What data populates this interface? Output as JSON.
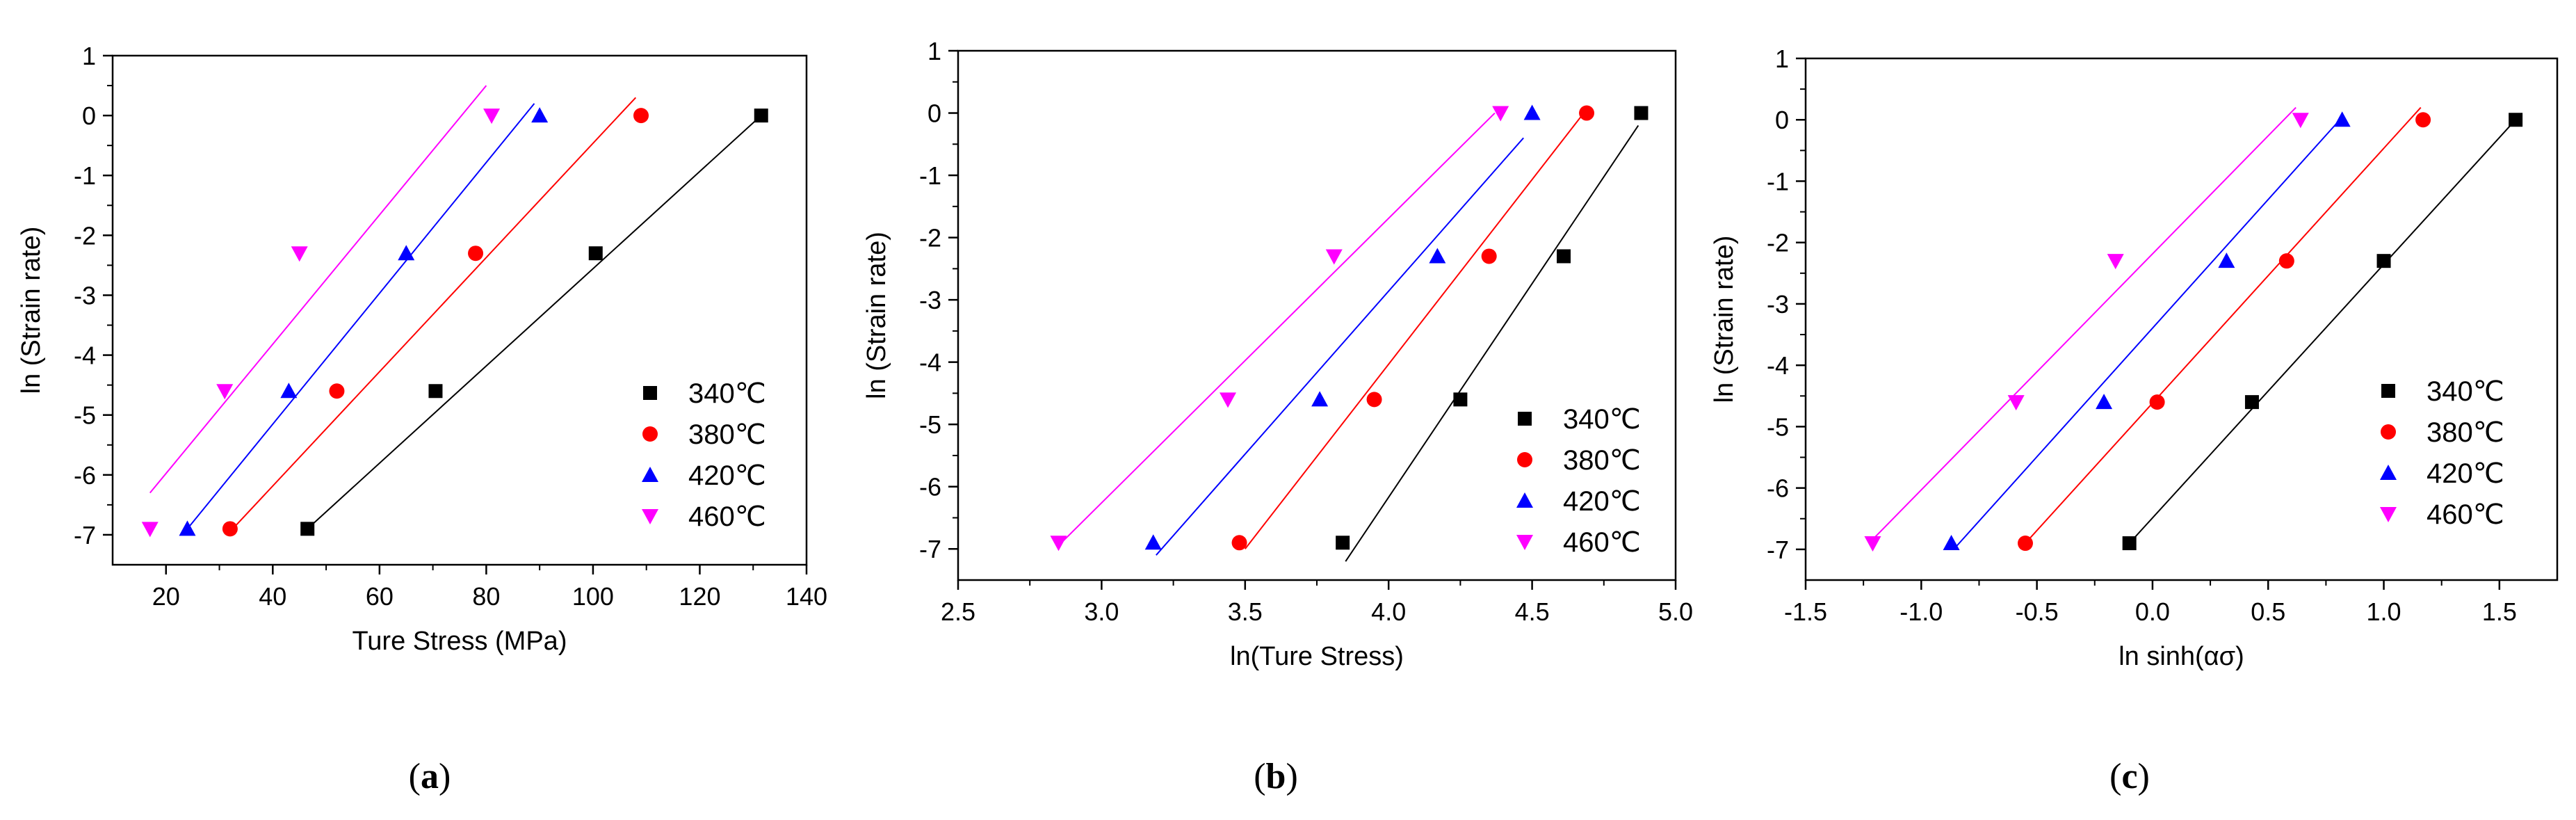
{
  "chart_data": [
    {
      "type": "scatter",
      "panel_label": "(a)",
      "panel_letter": "a",
      "xlabel": "Ture Stress (MPa)",
      "ylabel": "ln (Strain rate)",
      "xlim": [
        10,
        140
      ],
      "ylim": [
        -7.5,
        1
      ],
      "xticks": [
        20,
        40,
        60,
        80,
        100,
        120,
        140
      ],
      "yticks": [
        1,
        0,
        -1,
        -2,
        -3,
        -4,
        -5,
        -6,
        -7
      ],
      "legend_position": "bottom-right",
      "series": [
        {
          "name": "340℃",
          "color": "#000000",
          "marker": "square",
          "x": [
            46.5,
            70.5,
            100.5,
            131.5
          ],
          "y": [
            -6.9,
            -4.6,
            -2.3,
            0.0
          ],
          "fit": [
            [
              46.5,
              -6.9
            ],
            [
              131.5,
              0.0
            ]
          ]
        },
        {
          "name": "380℃",
          "color": "#ff0000",
          "marker": "circle",
          "x": [
            32,
            52,
            78,
            109
          ],
          "y": [
            -6.9,
            -4.6,
            -2.3,
            0.0
          ],
          "fit": [
            [
              32.5,
              -6.9
            ],
            [
              108,
              0.3
            ]
          ]
        },
        {
          "name": "420℃",
          "color": "#0000ff",
          "marker": "triangle-up",
          "x": [
            24,
            43,
            65,
            90
          ],
          "y": [
            -6.9,
            -4.6,
            -2.3,
            0.0
          ],
          "fit": [
            [
              24,
              -6.9
            ],
            [
              89,
              0.2
            ]
          ]
        },
        {
          "name": "460℃",
          "color": "#ff00ff",
          "marker": "triangle-down",
          "x": [
            17,
            31,
            45,
            81
          ],
          "y": [
            -6.9,
            -4.6,
            -2.3,
            0.0
          ],
          "fit": [
            [
              17,
              -6.3
            ],
            [
              80,
              0.5
            ]
          ]
        }
      ]
    },
    {
      "type": "scatter",
      "panel_label": "(b)",
      "panel_letter": "b",
      "xlabel": "ln(Ture Stress)",
      "ylabel": "ln (Strain rate)",
      "xlim": [
        2.5,
        5.0
      ],
      "ylim": [
        -7.5,
        1
      ],
      "xticks": [
        2.5,
        3.0,
        3.5,
        4.0,
        4.5,
        5.0
      ],
      "xtick_labels": [
        "2.5",
        "3.0",
        "3.5",
        "4.0",
        "4.5",
        "5.0"
      ],
      "yticks": [
        1,
        0,
        -1,
        -2,
        -3,
        -4,
        -5,
        -6,
        -7
      ],
      "legend_position": "bottom-right",
      "series": [
        {
          "name": "340℃",
          "color": "#000000",
          "marker": "square",
          "x": [
            3.84,
            4.25,
            4.61,
            4.88
          ],
          "y": [
            -6.9,
            -4.6,
            -2.3,
            0.0
          ],
          "fit": [
            [
              3.85,
              -7.2
            ],
            [
              4.87,
              -0.2
            ]
          ]
        },
        {
          "name": "380℃",
          "color": "#ff0000",
          "marker": "circle",
          "x": [
            3.48,
            3.95,
            4.35,
            4.69
          ],
          "y": [
            -6.9,
            -4.6,
            -2.3,
            0.0
          ],
          "fit": [
            [
              3.5,
              -7.0
            ],
            [
              4.68,
              0.0
            ]
          ]
        },
        {
          "name": "420℃",
          "color": "#0000ff",
          "marker": "triangle-up",
          "x": [
            3.18,
            3.76,
            4.17,
            4.5
          ],
          "y": [
            -6.9,
            -4.6,
            -2.3,
            0.0
          ],
          "fit": [
            [
              3.19,
              -7.1
            ],
            [
              4.47,
              -0.4
            ]
          ]
        },
        {
          "name": "460℃",
          "color": "#ff00ff",
          "marker": "triangle-down",
          "x": [
            2.85,
            3.44,
            3.81,
            4.39
          ],
          "y": [
            -6.9,
            -4.6,
            -2.3,
            0.0
          ],
          "fit": [
            [
              2.86,
              -6.9
            ],
            [
              4.37,
              0.0
            ]
          ]
        }
      ]
    },
    {
      "type": "scatter",
      "panel_label": "(c)",
      "panel_letter": "c",
      "xlabel": "ln sinh(ασ)",
      "ylabel": "ln (Strain rate)",
      "xlim": [
        -1.5,
        1.75
      ],
      "ylim": [
        -7.5,
        1
      ],
      "xticks": [
        -1.5,
        -1.0,
        -0.5,
        0.0,
        0.5,
        1.0,
        1.5
      ],
      "xtick_labels": [
        "-1.5",
        "-1.0",
        "-0.5",
        "0.0",
        "0.5",
        "1.0",
        "1.5"
      ],
      "yticks": [
        1,
        0,
        -1,
        -2,
        -3,
        -4,
        -5,
        -6,
        -7
      ],
      "legend_position": "bottom-right",
      "series": [
        {
          "name": "340℃",
          "color": "#000000",
          "marker": "square",
          "x": [
            -0.1,
            0.43,
            1.0,
            1.57
          ],
          "y": [
            -6.9,
            -4.6,
            -2.3,
            0.0
          ],
          "fit": [
            [
              -0.1,
              -6.9
            ],
            [
              1.57,
              0.0
            ]
          ]
        },
        {
          "name": "380℃",
          "color": "#ff0000",
          "marker": "circle",
          "x": [
            -0.55,
            0.02,
            0.58,
            1.17
          ],
          "y": [
            -6.9,
            -4.6,
            -2.3,
            0.0
          ],
          "fit": [
            [
              -0.55,
              -6.9
            ],
            [
              1.16,
              0.2
            ]
          ]
        },
        {
          "name": "420℃",
          "color": "#0000ff",
          "marker": "triangle-up",
          "x": [
            -0.87,
            -0.21,
            0.32,
            0.82
          ],
          "y": [
            -6.9,
            -4.6,
            -2.3,
            0.0
          ],
          "fit": [
            [
              -0.86,
              -7.0
            ],
            [
              0.81,
              0.0
            ]
          ]
        },
        {
          "name": "460℃",
          "color": "#ff00ff",
          "marker": "triangle-down",
          "x": [
            -1.21,
            -0.59,
            -0.16,
            0.64
          ],
          "y": [
            -6.9,
            -4.6,
            -2.3,
            0.0
          ],
          "fit": [
            [
              -1.2,
              -6.8
            ],
            [
              0.62,
              0.2
            ]
          ]
        }
      ]
    }
  ]
}
